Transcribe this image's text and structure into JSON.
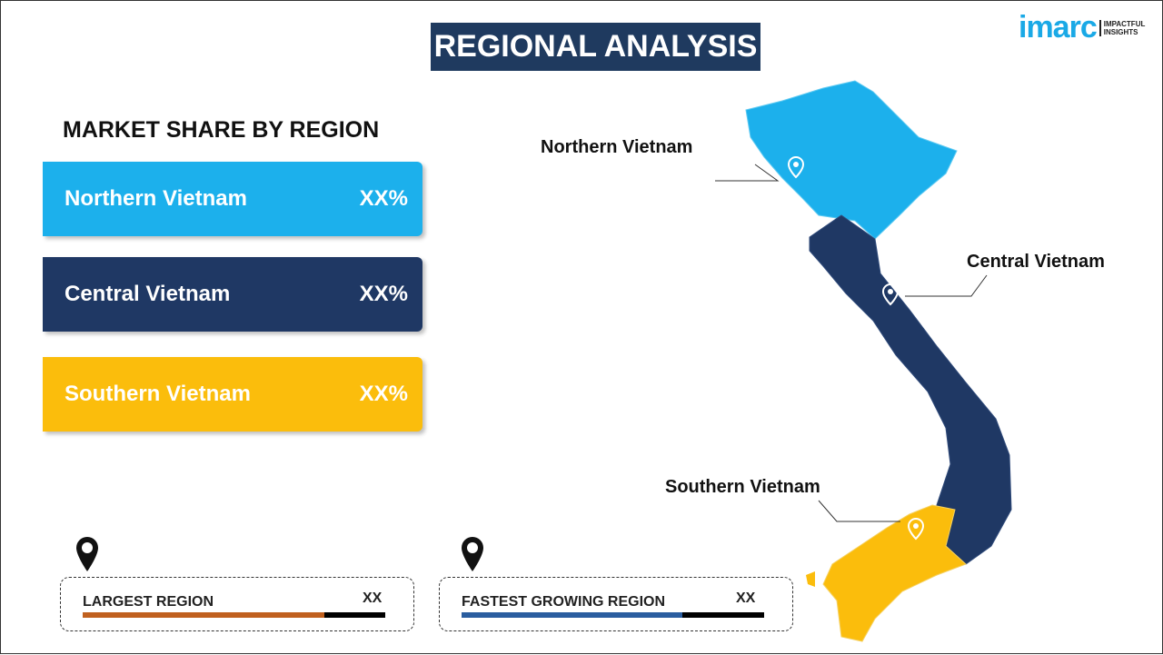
{
  "title": "REGIONAL ANALYSIS",
  "logo": {
    "brand": "imarc",
    "tagline": "IMPACTFUL INSIGHTS"
  },
  "subtitle": "MARKET SHARE BY REGION",
  "regions": [
    {
      "name": "Northern Vietnam",
      "value": "XX%",
      "color": "#1cb0ec"
    },
    {
      "name": "Central Vietnam",
      "value": "XX%",
      "color": "#1f3864"
    },
    {
      "name": "Southern Vietnam",
      "value": "XX%",
      "color": "#fbbd0c"
    }
  ],
  "map_labels": [
    "Northern Vietnam",
    "Central Vietnam",
    "Southern Vietnam"
  ],
  "largest": {
    "label": "LARGEST REGION",
    "value": "XX",
    "color": "#c0601e"
  },
  "fastest": {
    "label": "FASTEST GROWING REGION",
    "value": "XX",
    "color": "#2a5d9f"
  }
}
